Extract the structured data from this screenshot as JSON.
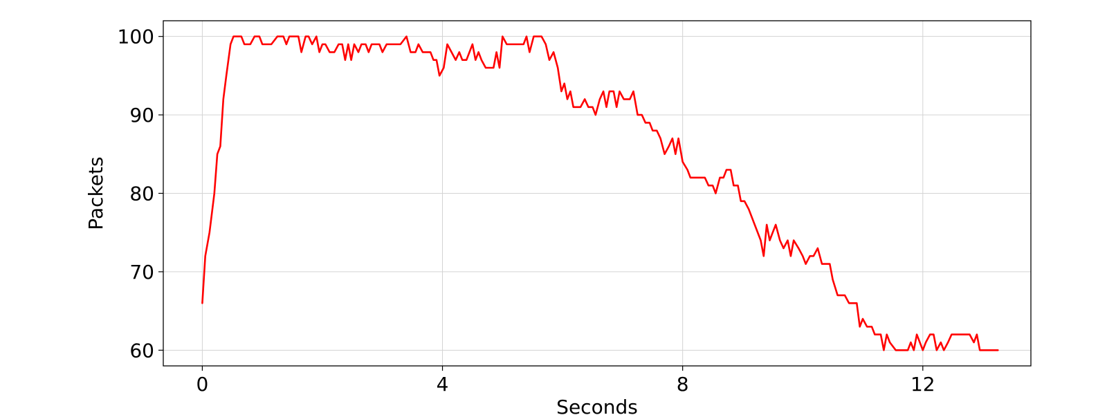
{
  "chart_data": {
    "type": "line",
    "title": "",
    "xlabel": "Seconds",
    "ylabel": "Packets",
    "xlim": [
      -0.65,
      13.8
    ],
    "ylim": [
      58,
      102
    ],
    "xticks": [
      0,
      4,
      8,
      12
    ],
    "yticks": [
      60,
      70,
      80,
      90,
      100
    ],
    "grid": true,
    "colors": {
      "line": "#ff0000",
      "grid": "#d3d3d3",
      "axes": "#000000"
    },
    "series": [
      {
        "points": [
          [
            0.0,
            66
          ],
          [
            0.05,
            72
          ],
          [
            0.12,
            75
          ],
          [
            0.2,
            80
          ],
          [
            0.25,
            85
          ],
          [
            0.3,
            86
          ],
          [
            0.35,
            92
          ],
          [
            0.4,
            95
          ],
          [
            0.47,
            99
          ],
          [
            0.52,
            100
          ],
          [
            0.6,
            100
          ],
          [
            0.65,
            100
          ],
          [
            0.7,
            99
          ],
          [
            0.8,
            99
          ],
          [
            0.87,
            100
          ],
          [
            0.95,
            100
          ],
          [
            1.0,
            99
          ],
          [
            1.15,
            99
          ],
          [
            1.25,
            100
          ],
          [
            1.35,
            100
          ],
          [
            1.4,
            99
          ],
          [
            1.45,
            100
          ],
          [
            1.6,
            100
          ],
          [
            1.65,
            98
          ],
          [
            1.72,
            100
          ],
          [
            1.77,
            100
          ],
          [
            1.83,
            99
          ],
          [
            1.9,
            100
          ],
          [
            1.95,
            98
          ],
          [
            2.0,
            99
          ],
          [
            2.05,
            99
          ],
          [
            2.12,
            98
          ],
          [
            2.2,
            98
          ],
          [
            2.27,
            99
          ],
          [
            2.33,
            99
          ],
          [
            2.38,
            97
          ],
          [
            2.43,
            99
          ],
          [
            2.48,
            97
          ],
          [
            2.53,
            99
          ],
          [
            2.6,
            98
          ],
          [
            2.65,
            99
          ],
          [
            2.72,
            99
          ],
          [
            2.77,
            98
          ],
          [
            2.82,
            99
          ],
          [
            2.95,
            99
          ],
          [
            3.0,
            98
          ],
          [
            3.07,
            99
          ],
          [
            3.3,
            99
          ],
          [
            3.4,
            100
          ],
          [
            3.47,
            98
          ],
          [
            3.55,
            98
          ],
          [
            3.6,
            99
          ],
          [
            3.67,
            98
          ],
          [
            3.8,
            98
          ],
          [
            3.85,
            97
          ],
          [
            3.9,
            97
          ],
          [
            3.95,
            95
          ],
          [
            4.02,
            96
          ],
          [
            4.08,
            99
          ],
          [
            4.15,
            98
          ],
          [
            4.22,
            97
          ],
          [
            4.28,
            98
          ],
          [
            4.33,
            97
          ],
          [
            4.4,
            97
          ],
          [
            4.5,
            99
          ],
          [
            4.55,
            97
          ],
          [
            4.6,
            98
          ],
          [
            4.65,
            97
          ],
          [
            4.72,
            96
          ],
          [
            4.85,
            96
          ],
          [
            4.9,
            98
          ],
          [
            4.95,
            96
          ],
          [
            5.0,
            100
          ],
          [
            5.07,
            99
          ],
          [
            5.35,
            99
          ],
          [
            5.4,
            100
          ],
          [
            5.45,
            98
          ],
          [
            5.52,
            100
          ],
          [
            5.65,
            100
          ],
          [
            5.72,
            99
          ],
          [
            5.78,
            97
          ],
          [
            5.85,
            98
          ],
          [
            5.92,
            96
          ],
          [
            5.98,
            93
          ],
          [
            6.03,
            94
          ],
          [
            6.08,
            92
          ],
          [
            6.13,
            93
          ],
          [
            6.18,
            91
          ],
          [
            6.3,
            91
          ],
          [
            6.37,
            92
          ],
          [
            6.43,
            91
          ],
          [
            6.5,
            91
          ],
          [
            6.55,
            90
          ],
          [
            6.62,
            92
          ],
          [
            6.68,
            93
          ],
          [
            6.73,
            91
          ],
          [
            6.78,
            93
          ],
          [
            6.85,
            93
          ],
          [
            6.9,
            91
          ],
          [
            6.95,
            93
          ],
          [
            7.02,
            92
          ],
          [
            7.12,
            92
          ],
          [
            7.18,
            93
          ],
          [
            7.25,
            90
          ],
          [
            7.32,
            90
          ],
          [
            7.38,
            89
          ],
          [
            7.45,
            89
          ],
          [
            7.5,
            88
          ],
          [
            7.57,
            88
          ],
          [
            7.63,
            87
          ],
          [
            7.7,
            85
          ],
          [
            7.77,
            86
          ],
          [
            7.83,
            87
          ],
          [
            7.88,
            85
          ],
          [
            7.93,
            87
          ],
          [
            8.0,
            84
          ],
          [
            8.08,
            83
          ],
          [
            8.13,
            82
          ],
          [
            8.27,
            82
          ],
          [
            8.37,
            82
          ],
          [
            8.43,
            81
          ],
          [
            8.5,
            81
          ],
          [
            8.55,
            80
          ],
          [
            8.62,
            82
          ],
          [
            8.68,
            82
          ],
          [
            8.73,
            83
          ],
          [
            8.8,
            83
          ],
          [
            8.85,
            81
          ],
          [
            8.92,
            81
          ],
          [
            8.97,
            79
          ],
          [
            9.03,
            79
          ],
          [
            9.1,
            78
          ],
          [
            9.2,
            76
          ],
          [
            9.3,
            74
          ],
          [
            9.35,
            72
          ],
          [
            9.4,
            76
          ],
          [
            9.45,
            74
          ],
          [
            9.5,
            75
          ],
          [
            9.55,
            76
          ],
          [
            9.62,
            74
          ],
          [
            9.68,
            73
          ],
          [
            9.75,
            74
          ],
          [
            9.8,
            72
          ],
          [
            9.85,
            74
          ],
          [
            9.93,
            73
          ],
          [
            10.0,
            72
          ],
          [
            10.05,
            71
          ],
          [
            10.12,
            72
          ],
          [
            10.18,
            72
          ],
          [
            10.25,
            73
          ],
          [
            10.32,
            71
          ],
          [
            10.45,
            71
          ],
          [
            10.5,
            69
          ],
          [
            10.58,
            67
          ],
          [
            10.7,
            67
          ],
          [
            10.77,
            66
          ],
          [
            10.9,
            66
          ],
          [
            10.95,
            63
          ],
          [
            11.0,
            64
          ],
          [
            11.07,
            63
          ],
          [
            11.15,
            63
          ],
          [
            11.2,
            62
          ],
          [
            11.3,
            62
          ],
          [
            11.35,
            60
          ],
          [
            11.4,
            62
          ],
          [
            11.45,
            61
          ],
          [
            11.55,
            60
          ],
          [
            11.75,
            60
          ],
          [
            11.8,
            61
          ],
          [
            11.85,
            60
          ],
          [
            11.9,
            62
          ],
          [
            11.95,
            61
          ],
          [
            12.0,
            60
          ],
          [
            12.05,
            61
          ],
          [
            12.12,
            62
          ],
          [
            12.18,
            62
          ],
          [
            12.23,
            60
          ],
          [
            12.3,
            61
          ],
          [
            12.35,
            60
          ],
          [
            12.42,
            61
          ],
          [
            12.48,
            62
          ],
          [
            12.7,
            62
          ],
          [
            12.78,
            62
          ],
          [
            12.85,
            61
          ],
          [
            12.9,
            62
          ],
          [
            12.95,
            60
          ],
          [
            13.25,
            60
          ]
        ]
      }
    ]
  }
}
